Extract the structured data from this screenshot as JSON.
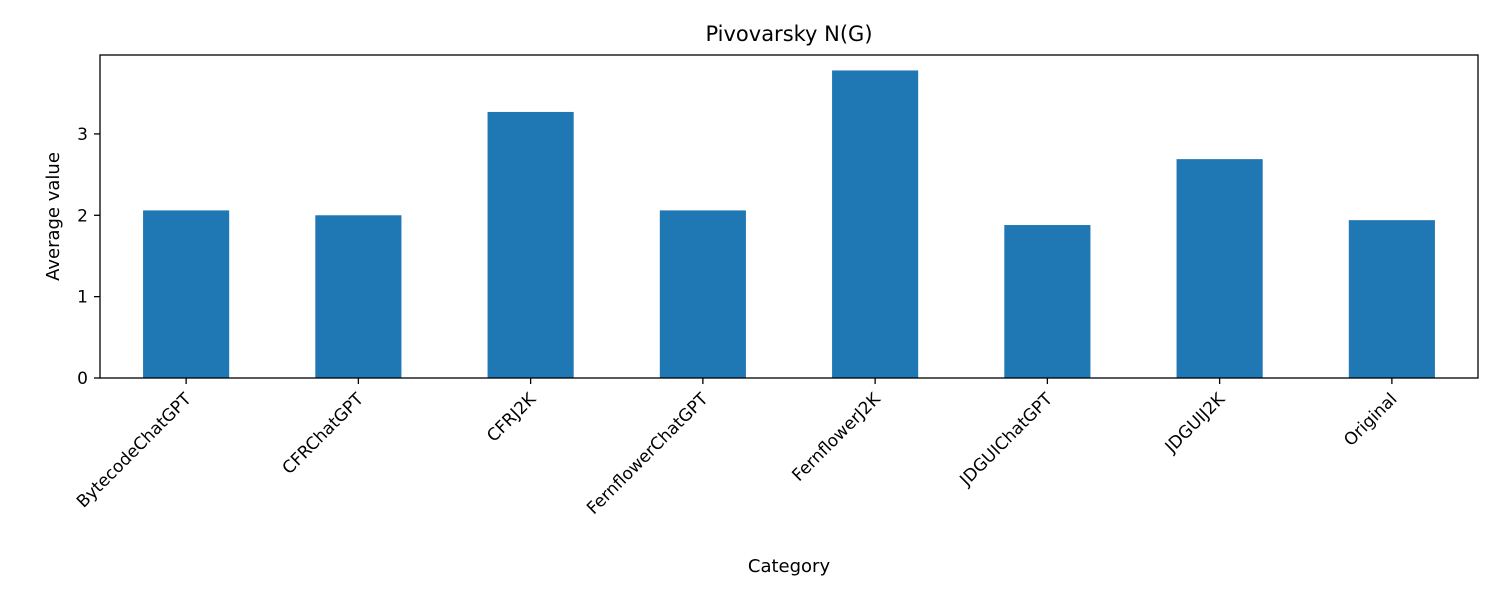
{
  "chart_data": {
    "type": "bar",
    "title": "Pivovarsky N(G)",
    "xlabel": "Category",
    "ylabel": "Average value",
    "categories": [
      "BytecodeChatGPT",
      "CFRChatGPT",
      "CFRJ2K",
      "FernflowerChatGPT",
      "FernflowerJ2K",
      "JDGUIChatGPT",
      "JDGUIJ2K",
      "Original"
    ],
    "values": [
      2.06,
      2.0,
      3.27,
      2.06,
      3.78,
      1.88,
      2.69,
      1.94
    ],
    "ylim": [
      0,
      3.97
    ],
    "yticks": [
      0,
      1,
      2,
      3
    ],
    "ytick_labels": [
      "0",
      "1",
      "2",
      "3"
    ],
    "bar_color": "#1f77b4",
    "grid": false,
    "legend": "none"
  }
}
